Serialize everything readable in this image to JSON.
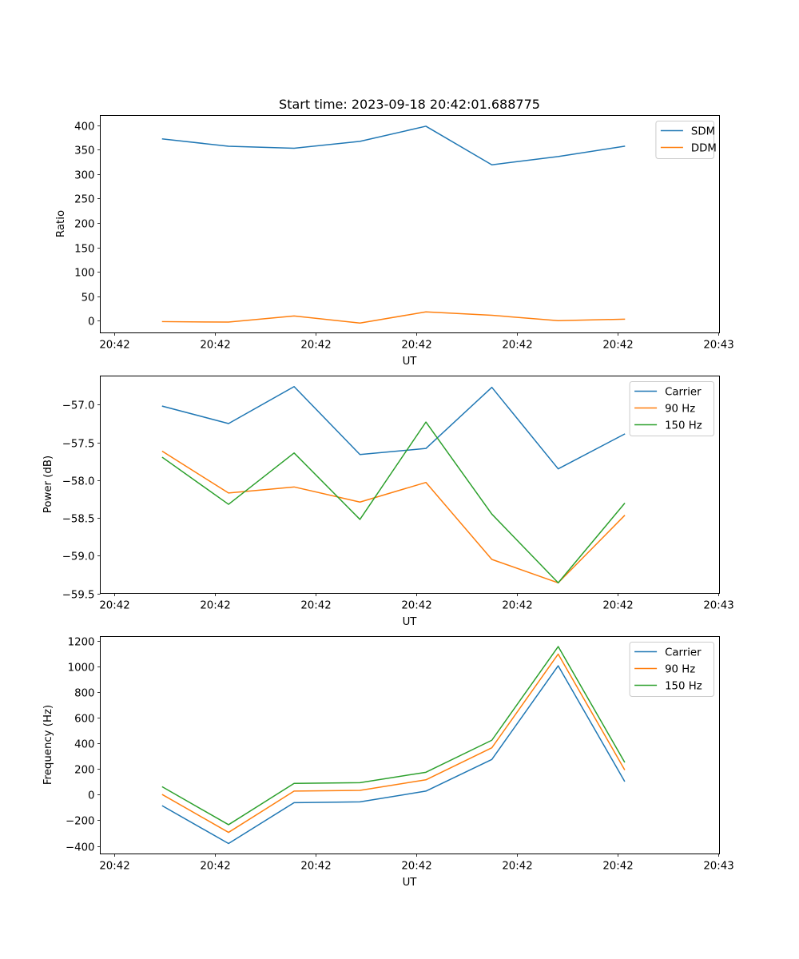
{
  "chart_data": [
    {
      "type": "line",
      "title": "Start time: 2023-09-18 20:42:01.688775",
      "xlabel": "UT",
      "ylabel": "Ratio",
      "x_units": "seconds after 20:42:00",
      "x": [
        4.84,
        11.39,
        17.9,
        24.44,
        30.99,
        37.54,
        44.13,
        50.71
      ],
      "xlim": [
        -1.35,
        60.15
      ],
      "xticks": [
        0,
        10,
        20,
        30,
        40,
        50,
        60
      ],
      "xtick_labels": [
        "20:42",
        "20:42",
        "20:42",
        "20:42",
        "20:42",
        "20:42",
        "20:43"
      ],
      "ylim": [
        -25,
        420
      ],
      "yticks": [
        0,
        50,
        100,
        150,
        200,
        250,
        300,
        350,
        400
      ],
      "ytick_labels": [
        "0",
        "50",
        "100",
        "150",
        "200",
        "250",
        "300",
        "350",
        "400"
      ],
      "grid": false,
      "legend_position": "top-right",
      "series": [
        {
          "name": "SDM",
          "color": "#1f77b4",
          "values": [
            372,
            357,
            353,
            367,
            398,
            319,
            336,
            357
          ]
        },
        {
          "name": "DDM",
          "color": "#ff7f0e",
          "values": [
            -2,
            -3,
            9.5,
            -5,
            18,
            11,
            0,
            3
          ]
        }
      ]
    },
    {
      "type": "line",
      "title": "",
      "xlabel": "UT",
      "ylabel": "Power (dB)",
      "x_units": "seconds after 20:42:00",
      "x": [
        4.84,
        11.39,
        17.9,
        24.44,
        30.99,
        37.54,
        44.13,
        50.71
      ],
      "xlim": [
        -1.35,
        60.15
      ],
      "xticks": [
        0,
        10,
        20,
        30,
        40,
        50,
        60
      ],
      "xtick_labels": [
        "20:42",
        "20:42",
        "20:42",
        "20:42",
        "20:42",
        "20:42",
        "20:43"
      ],
      "ylim": [
        -59.5,
        -56.62
      ],
      "yticks": [
        -59.5,
        -59.0,
        -58.5,
        -58.0,
        -57.5,
        -57.0
      ],
      "ytick_labels": [
        "−59.5",
        "−59.0",
        "−58.5",
        "−58.0",
        "−57.5",
        "−57.0"
      ],
      "grid": false,
      "legend_position": "top-right",
      "series": [
        {
          "name": "Carrier",
          "color": "#1f77b4",
          "values": [
            -57.02,
            -57.25,
            -56.76,
            -57.66,
            -57.58,
            -56.77,
            -57.85,
            -57.39
          ]
        },
        {
          "name": "90 Hz",
          "color": "#ff7f0e",
          "values": [
            -57.62,
            -58.17,
            -58.09,
            -58.29,
            -58.03,
            -59.05,
            -59.36,
            -58.47
          ]
        },
        {
          "name": "150 Hz",
          "color": "#2ca02c",
          "values": [
            -57.7,
            -58.32,
            -57.64,
            -58.52,
            -57.23,
            -58.45,
            -59.36,
            -58.31
          ]
        }
      ]
    },
    {
      "type": "line",
      "title": "",
      "xlabel": "UT",
      "ylabel": "Frequency (Hz)",
      "x_units": "seconds after 20:42:00",
      "x": [
        4.84,
        11.39,
        17.9,
        24.44,
        30.99,
        37.54,
        44.13,
        50.71
      ],
      "xlim": [
        -1.35,
        60.15
      ],
      "xticks": [
        0,
        10,
        20,
        30,
        40,
        50,
        60
      ],
      "xtick_labels": [
        "20:42",
        "20:42",
        "20:42",
        "20:42",
        "20:42",
        "20:42",
        "20:43"
      ],
      "ylim": [
        -462,
        1234
      ],
      "yticks": [
        -400,
        -200,
        0,
        200,
        400,
        600,
        800,
        1000,
        1200
      ],
      "ytick_labels": [
        "−400",
        "−200",
        "0",
        "200",
        "400",
        "600",
        "800",
        "1000",
        "1200"
      ],
      "grid": false,
      "legend_position": "top-right",
      "series": [
        {
          "name": "Carrier",
          "color": "#1f77b4",
          "values": [
            -88,
            -381,
            -62,
            -56,
            28,
            275,
            1006,
            106
          ]
        },
        {
          "name": "90 Hz",
          "color": "#ff7f0e",
          "values": [
            0,
            -294,
            28,
            34,
            116,
            366,
            1097,
            197
          ]
        },
        {
          "name": "150 Hz",
          "color": "#2ca02c",
          "values": [
            60,
            -234,
            88,
            94,
            175,
            425,
            1156,
            256
          ]
        }
      ]
    }
  ]
}
